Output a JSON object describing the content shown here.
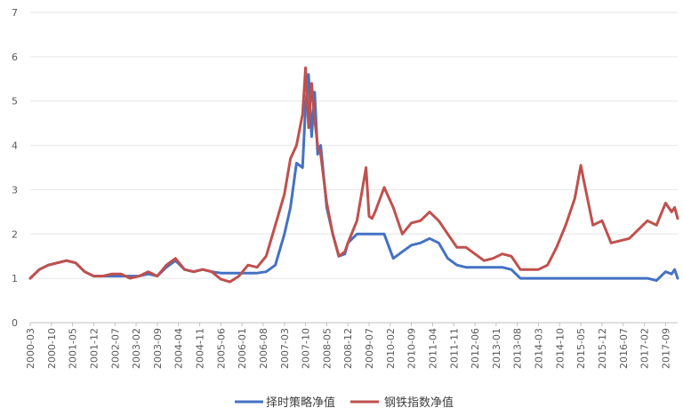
{
  "chart_data": {
    "type": "line",
    "title": "",
    "xlabel": "",
    "ylabel": "",
    "ylim": [
      0,
      7
    ],
    "yticks": [
      "0",
      "1",
      "2",
      "3",
      "4",
      "5",
      "6",
      "7"
    ],
    "xticks": [
      "2000-03",
      "2000-10",
      "2001-05",
      "2001-12",
      "2002-07",
      "2003-02",
      "2003-09",
      "2004-04",
      "2004-11",
      "2005-06",
      "2006-01",
      "2006-08",
      "2007-03",
      "2007-10",
      "2008-05",
      "2008-12",
      "2009-07",
      "2010-02",
      "2010-09",
      "2011-04",
      "2011-11",
      "2012-06",
      "2013-01",
      "2013-08",
      "2014-03",
      "2014-10",
      "2015-05",
      "2015-12",
      "2016-07",
      "2017-02",
      "2017-09"
    ],
    "grid": "horizontal",
    "legend_position": "bottom",
    "x": [
      "2000-03",
      "2000-06",
      "2000-09",
      "2000-12",
      "2001-03",
      "2001-06",
      "2001-09",
      "2001-12",
      "2002-03",
      "2002-06",
      "2002-09",
      "2002-12",
      "2003-03",
      "2003-06",
      "2003-09",
      "2003-12",
      "2004-03",
      "2004-06",
      "2004-09",
      "2004-12",
      "2005-03",
      "2005-06",
      "2005-09",
      "2005-12",
      "2006-03",
      "2006-06",
      "2006-09",
      "2006-12",
      "2007-03",
      "2007-05",
      "2007-07",
      "2007-09",
      "2007-10",
      "2007-11",
      "2007-12",
      "2008-01",
      "2008-02",
      "2008-03",
      "2008-05",
      "2008-07",
      "2008-09",
      "2008-11",
      "2008-12",
      "2009-03",
      "2009-06",
      "2009-07",
      "2009-08",
      "2009-09",
      "2009-12",
      "2010-03",
      "2010-06",
      "2010-09",
      "2010-12",
      "2011-03",
      "2011-06",
      "2011-09",
      "2011-12",
      "2012-03",
      "2012-06",
      "2012-09",
      "2012-12",
      "2013-03",
      "2013-06",
      "2013-09",
      "2013-12",
      "2014-03",
      "2014-06",
      "2014-09",
      "2014-12",
      "2015-03",
      "2015-05",
      "2015-06",
      "2015-09",
      "2015-12",
      "2016-03",
      "2016-06",
      "2016-09",
      "2016-12",
      "2017-03",
      "2017-06",
      "2017-09",
      "2017-11",
      "2017-12",
      "2018-01"
    ],
    "series": [
      {
        "name": "择时策略净值",
        "color": "#4472c4",
        "values": [
          1.0,
          1.2,
          1.3,
          1.35,
          1.4,
          1.35,
          1.15,
          1.05,
          1.05,
          1.05,
          1.05,
          1.05,
          1.05,
          1.1,
          1.05,
          1.25,
          1.4,
          1.2,
          1.15,
          1.2,
          1.15,
          1.12,
          1.12,
          1.12,
          1.12,
          1.12,
          1.15,
          1.3,
          2.0,
          2.6,
          3.6,
          3.5,
          4.9,
          5.6,
          4.2,
          5.2,
          3.8,
          4.0,
          2.6,
          2.0,
          1.5,
          1.55,
          1.8,
          2.0,
          2.0,
          2.0,
          2.0,
          2.0,
          2.0,
          1.45,
          1.6,
          1.75,
          1.8,
          1.9,
          1.8,
          1.45,
          1.3,
          1.25,
          1.25,
          1.25,
          1.25,
          1.25,
          1.2,
          1.0,
          1.0,
          1.0,
          1.0,
          1.0,
          1.0,
          1.0,
          1.0,
          1.0,
          1.0,
          1.0,
          1.0,
          1.0,
          1.0,
          1.0,
          1.0,
          0.95,
          1.15,
          1.1,
          1.2,
          1.0
        ]
      },
      {
        "name": "钢铁指数净值",
        "color": "#c0504d",
        "values": [
          1.0,
          1.2,
          1.3,
          1.35,
          1.4,
          1.35,
          1.15,
          1.05,
          1.05,
          1.1,
          1.1,
          1.0,
          1.05,
          1.15,
          1.05,
          1.3,
          1.45,
          1.2,
          1.15,
          1.2,
          1.15,
          0.98,
          0.92,
          1.05,
          1.3,
          1.25,
          1.5,
          2.2,
          2.9,
          3.7,
          4.0,
          4.7,
          5.75,
          4.4,
          5.4,
          4.6,
          4.0,
          3.8,
          2.7,
          2.0,
          1.5,
          1.6,
          1.8,
          2.3,
          3.5,
          2.4,
          2.35,
          2.5,
          3.05,
          2.6,
          2.0,
          2.25,
          2.3,
          2.5,
          2.3,
          2.0,
          1.7,
          1.7,
          1.55,
          1.4,
          1.45,
          1.55,
          1.5,
          1.2,
          1.2,
          1.2,
          1.3,
          1.7,
          2.2,
          2.8,
          3.55,
          3.2,
          2.2,
          2.3,
          1.8,
          1.85,
          1.9,
          2.1,
          2.3,
          2.2,
          2.7,
          2.5,
          2.6,
          2.35
        ]
      }
    ]
  }
}
